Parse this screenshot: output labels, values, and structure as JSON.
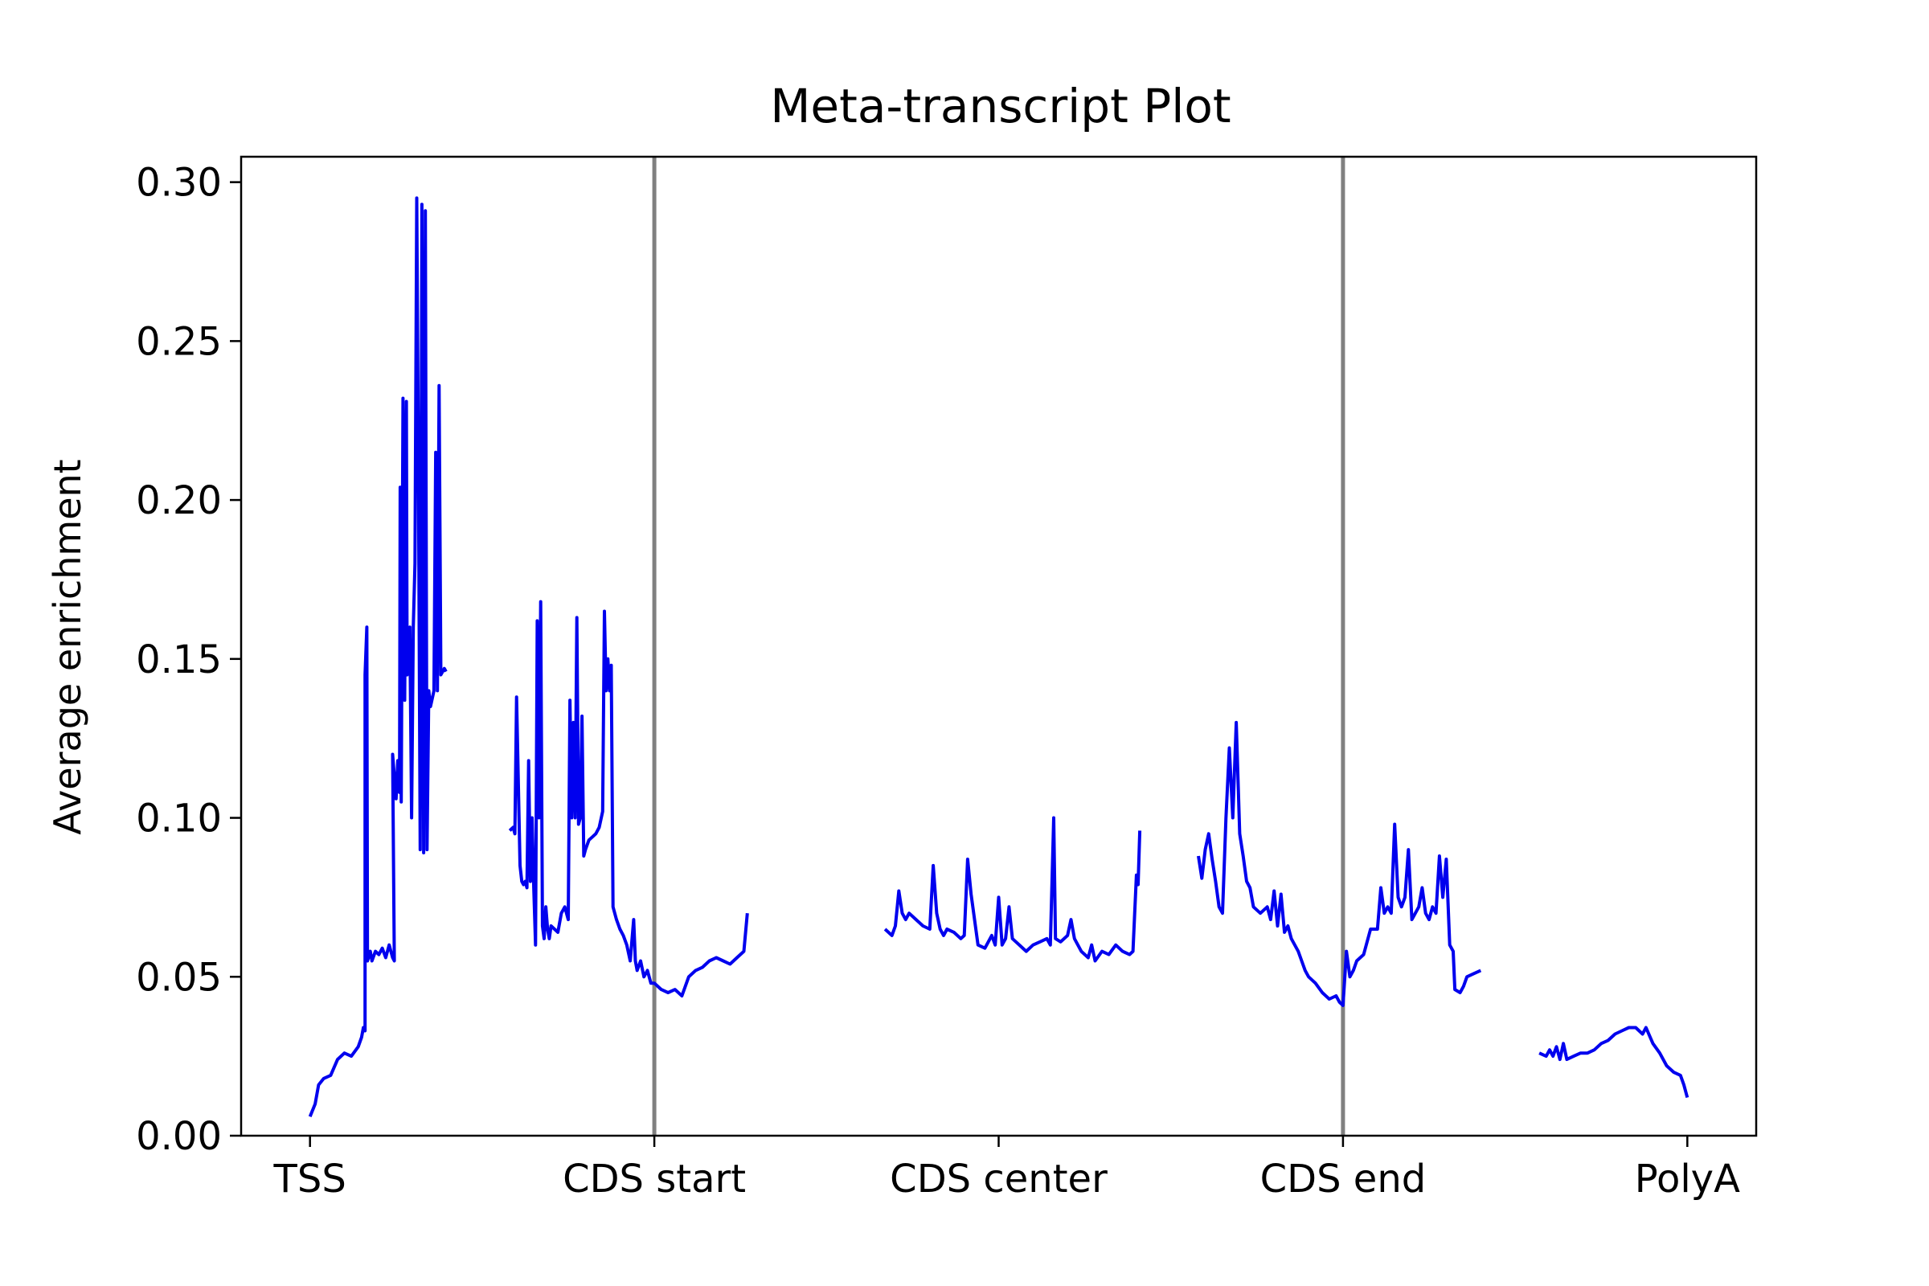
{
  "chart_data": {
    "type": "line",
    "title": "Meta-transcript Plot",
    "xlabel": "",
    "ylabel": "Average enrichment",
    "xlim": [
      -0.2,
      4.2
    ],
    "ylim": [
      0,
      0.308
    ],
    "x_ticks": [
      {
        "x": 0,
        "label": "TSS"
      },
      {
        "x": 1,
        "label": "CDS start"
      },
      {
        "x": 2,
        "label": "CDS center"
      },
      {
        "x": 3,
        "label": "CDS end"
      },
      {
        "x": 4,
        "label": "PolyA"
      }
    ],
    "y_ticks": [
      {
        "y": 0.0,
        "label": "0.00"
      },
      {
        "y": 0.05,
        "label": "0.05"
      },
      {
        "y": 0.1,
        "label": "0.10"
      },
      {
        "y": 0.15,
        "label": "0.15"
      },
      {
        "y": 0.2,
        "label": "0.20"
      },
      {
        "y": 0.25,
        "label": "0.25"
      },
      {
        "y": 0.3,
        "label": "0.30"
      }
    ],
    "vlines": [
      1,
      3
    ],
    "grid": false,
    "legend": "none",
    "colors": {
      "series": "#0000ee",
      "vline": "#808080",
      "axis": "#000000"
    },
    "segments": [
      [
        [
          0.0,
          0.006
        ],
        [
          0.015,
          0.01
        ],
        [
          0.025,
          0.016
        ],
        [
          0.04,
          0.018
        ],
        [
          0.06,
          0.019
        ],
        [
          0.08,
          0.024
        ],
        [
          0.1,
          0.026
        ],
        [
          0.12,
          0.025
        ],
        [
          0.14,
          0.028
        ],
        [
          0.15,
          0.031
        ],
        [
          0.155,
          0.034
        ],
        [
          0.16,
          0.033
        ],
        [
          0.16,
          0.145
        ],
        [
          0.165,
          0.16
        ],
        [
          0.167,
          0.055
        ],
        [
          0.175,
          0.058
        ],
        [
          0.18,
          0.055
        ],
        [
          0.19,
          0.058
        ],
        [
          0.2,
          0.057
        ],
        [
          0.21,
          0.059
        ],
        [
          0.22,
          0.056
        ],
        [
          0.23,
          0.06
        ],
        [
          0.24,
          0.056
        ],
        [
          0.245,
          0.055
        ],
        [
          0.24,
          0.12
        ],
        [
          0.25,
          0.106
        ],
        [
          0.255,
          0.118
        ],
        [
          0.26,
          0.108
        ],
        [
          0.262,
          0.204
        ],
        [
          0.265,
          0.105
        ],
        [
          0.27,
          0.232
        ],
        [
          0.275,
          0.137
        ],
        [
          0.28,
          0.231
        ],
        [
          0.282,
          0.145
        ],
        [
          0.29,
          0.16
        ],
        [
          0.295,
          0.1
        ],
        [
          0.3,
          0.16
        ],
        [
          0.305,
          0.18
        ],
        [
          0.31,
          0.295
        ],
        [
          0.315,
          0.21
        ],
        [
          0.32,
          0.09
        ],
        [
          0.325,
          0.293
        ],
        [
          0.33,
          0.089
        ],
        [
          0.335,
          0.291
        ],
        [
          0.34,
          0.09
        ],
        [
          0.345,
          0.14
        ],
        [
          0.35,
          0.135
        ],
        [
          0.36,
          0.14
        ],
        [
          0.365,
          0.215
        ],
        [
          0.37,
          0.14
        ],
        [
          0.375,
          0.236
        ],
        [
          0.38,
          0.145
        ],
        [
          0.39,
          0.147
        ],
        [
          0.395,
          0.146
        ]
      ],
      [
        [
          0.58,
          0.096
        ],
        [
          0.59,
          0.097
        ],
        [
          0.595,
          0.095
        ],
        [
          0.6,
          0.138
        ],
        [
          0.61,
          0.085
        ],
        [
          0.615,
          0.08
        ],
        [
          0.62,
          0.079
        ],
        [
          0.625,
          0.08
        ],
        [
          0.63,
          0.078
        ],
        [
          0.635,
          0.118
        ],
        [
          0.64,
          0.08
        ],
        [
          0.645,
          0.1
        ],
        [
          0.65,
          0.078
        ],
        [
          0.655,
          0.06
        ],
        [
          0.66,
          0.162
        ],
        [
          0.665,
          0.1
        ],
        [
          0.67,
          0.168
        ],
        [
          0.675,
          0.066
        ],
        [
          0.68,
          0.062
        ],
        [
          0.685,
          0.072
        ],
        [
          0.69,
          0.065
        ],
        [
          0.695,
          0.062
        ],
        [
          0.7,
          0.066
        ],
        [
          0.72,
          0.064
        ],
        [
          0.73,
          0.07
        ],
        [
          0.74,
          0.072
        ],
        [
          0.75,
          0.068
        ],
        [
          0.755,
          0.137
        ],
        [
          0.76,
          0.1
        ],
        [
          0.765,
          0.13
        ],
        [
          0.77,
          0.1
        ],
        [
          0.775,
          0.163
        ],
        [
          0.78,
          0.098
        ],
        [
          0.785,
          0.1
        ],
        [
          0.79,
          0.132
        ],
        [
          0.795,
          0.088
        ],
        [
          0.8,
          0.09
        ],
        [
          0.81,
          0.093
        ],
        [
          0.82,
          0.094
        ],
        [
          0.83,
          0.095
        ],
        [
          0.84,
          0.097
        ],
        [
          0.85,
          0.102
        ],
        [
          0.855,
          0.165
        ],
        [
          0.86,
          0.14
        ],
        [
          0.865,
          0.15
        ],
        [
          0.87,
          0.14
        ],
        [
          0.875,
          0.148
        ],
        [
          0.88,
          0.072
        ],
        [
          0.89,
          0.068
        ],
        [
          0.9,
          0.065
        ],
        [
          0.91,
          0.063
        ],
        [
          0.92,
          0.06
        ],
        [
          0.93,
          0.055
        ],
        [
          0.94,
          0.068
        ],
        [
          0.945,
          0.055
        ],
        [
          0.95,
          0.052
        ],
        [
          0.96,
          0.055
        ],
        [
          0.97,
          0.05
        ],
        [
          0.98,
          0.052
        ],
        [
          0.99,
          0.048
        ],
        [
          1.0,
          0.048
        ],
        [
          1.02,
          0.046
        ],
        [
          1.04,
          0.045
        ],
        [
          1.06,
          0.046
        ],
        [
          1.08,
          0.044
        ],
        [
          1.1,
          0.05
        ],
        [
          1.12,
          0.052
        ],
        [
          1.14,
          0.053
        ],
        [
          1.16,
          0.055
        ],
        [
          1.18,
          0.056
        ],
        [
          1.2,
          0.055
        ],
        [
          1.22,
          0.054
        ],
        [
          1.24,
          0.056
        ],
        [
          1.26,
          0.058
        ],
        [
          1.27,
          0.07
        ]
      ],
      [
        [
          1.67,
          0.065
        ],
        [
          1.69,
          0.063
        ],
        [
          1.7,
          0.066
        ],
        [
          1.71,
          0.077
        ],
        [
          1.72,
          0.07
        ],
        [
          1.73,
          0.068
        ],
        [
          1.74,
          0.07
        ],
        [
          1.76,
          0.068
        ],
        [
          1.78,
          0.066
        ],
        [
          1.8,
          0.065
        ],
        [
          1.81,
          0.085
        ],
        [
          1.82,
          0.07
        ],
        [
          1.83,
          0.065
        ],
        [
          1.84,
          0.063
        ],
        [
          1.85,
          0.065
        ],
        [
          1.87,
          0.064
        ],
        [
          1.89,
          0.062
        ],
        [
          1.9,
          0.063
        ],
        [
          1.91,
          0.087
        ],
        [
          1.92,
          0.076
        ],
        [
          1.93,
          0.068
        ],
        [
          1.94,
          0.06
        ],
        [
          1.96,
          0.059
        ],
        [
          1.98,
          0.063
        ],
        [
          1.99,
          0.06
        ],
        [
          2.0,
          0.075
        ],
        [
          2.01,
          0.06
        ],
        [
          2.02,
          0.062
        ],
        [
          2.03,
          0.072
        ],
        [
          2.04,
          0.062
        ],
        [
          2.06,
          0.06
        ],
        [
          2.08,
          0.058
        ],
        [
          2.1,
          0.06
        ],
        [
          2.12,
          0.061
        ],
        [
          2.14,
          0.062
        ],
        [
          2.15,
          0.06
        ],
        [
          2.16,
          0.1
        ],
        [
          2.165,
          0.062
        ],
        [
          2.18,
          0.061
        ],
        [
          2.2,
          0.063
        ],
        [
          2.21,
          0.068
        ],
        [
          2.22,
          0.062
        ],
        [
          2.24,
          0.058
        ],
        [
          2.26,
          0.056
        ],
        [
          2.27,
          0.06
        ],
        [
          2.28,
          0.055
        ],
        [
          2.3,
          0.058
        ],
        [
          2.32,
          0.057
        ],
        [
          2.34,
          0.06
        ],
        [
          2.36,
          0.058
        ],
        [
          2.38,
          0.057
        ],
        [
          2.39,
          0.058
        ],
        [
          2.4,
          0.082
        ],
        [
          2.405,
          0.079
        ],
        [
          2.41,
          0.096
        ]
      ],
      [
        [
          2.58,
          0.088
        ],
        [
          2.59,
          0.081
        ],
        [
          2.6,
          0.09
        ],
        [
          2.61,
          0.095
        ],
        [
          2.62,
          0.087
        ],
        [
          2.63,
          0.08
        ],
        [
          2.64,
          0.072
        ],
        [
          2.65,
          0.07
        ],
        [
          2.66,
          0.1
        ],
        [
          2.67,
          0.122
        ],
        [
          2.68,
          0.1
        ],
        [
          2.69,
          0.13
        ],
        [
          2.7,
          0.095
        ],
        [
          2.71,
          0.088
        ],
        [
          2.72,
          0.08
        ],
        [
          2.73,
          0.078
        ],
        [
          2.74,
          0.072
        ],
        [
          2.76,
          0.07
        ],
        [
          2.78,
          0.072
        ],
        [
          2.79,
          0.068
        ],
        [
          2.8,
          0.077
        ],
        [
          2.81,
          0.066
        ],
        [
          2.82,
          0.076
        ],
        [
          2.83,
          0.064
        ],
        [
          2.84,
          0.066
        ],
        [
          2.85,
          0.062
        ],
        [
          2.86,
          0.06
        ],
        [
          2.87,
          0.058
        ],
        [
          2.88,
          0.055
        ],
        [
          2.89,
          0.052
        ],
        [
          2.9,
          0.05
        ],
        [
          2.92,
          0.048
        ],
        [
          2.94,
          0.045
        ],
        [
          2.96,
          0.043
        ],
        [
          2.98,
          0.044
        ],
        [
          2.99,
          0.042
        ],
        [
          3.0,
          0.041
        ],
        [
          3.01,
          0.058
        ],
        [
          3.02,
          0.05
        ],
        [
          3.03,
          0.052
        ],
        [
          3.04,
          0.055
        ],
        [
          3.06,
          0.057
        ],
        [
          3.08,
          0.065
        ],
        [
          3.1,
          0.065
        ],
        [
          3.11,
          0.078
        ],
        [
          3.12,
          0.07
        ],
        [
          3.13,
          0.072
        ],
        [
          3.14,
          0.07
        ],
        [
          3.15,
          0.098
        ],
        [
          3.16,
          0.075
        ],
        [
          3.17,
          0.072
        ],
        [
          3.18,
          0.075
        ],
        [
          3.19,
          0.09
        ],
        [
          3.2,
          0.068
        ],
        [
          3.22,
          0.072
        ],
        [
          3.23,
          0.078
        ],
        [
          3.24,
          0.07
        ],
        [
          3.25,
          0.068
        ],
        [
          3.26,
          0.072
        ],
        [
          3.27,
          0.07
        ],
        [
          3.28,
          0.088
        ],
        [
          3.29,
          0.075
        ],
        [
          3.3,
          0.087
        ],
        [
          3.31,
          0.06
        ],
        [
          3.32,
          0.058
        ],
        [
          3.325,
          0.046
        ],
        [
          3.34,
          0.045
        ],
        [
          3.35,
          0.047
        ],
        [
          3.36,
          0.05
        ],
        [
          3.38,
          0.051
        ],
        [
          3.4,
          0.052
        ]
      ],
      [
        [
          3.57,
          0.026
        ],
        [
          3.59,
          0.025
        ],
        [
          3.6,
          0.027
        ],
        [
          3.61,
          0.025
        ],
        [
          3.62,
          0.028
        ],
        [
          3.63,
          0.024
        ],
        [
          3.64,
          0.029
        ],
        [
          3.65,
          0.024
        ],
        [
          3.67,
          0.025
        ],
        [
          3.69,
          0.026
        ],
        [
          3.71,
          0.026
        ],
        [
          3.73,
          0.027
        ],
        [
          3.75,
          0.029
        ],
        [
          3.77,
          0.03
        ],
        [
          3.79,
          0.032
        ],
        [
          3.81,
          0.033
        ],
        [
          3.83,
          0.034
        ],
        [
          3.85,
          0.034
        ],
        [
          3.87,
          0.032
        ],
        [
          3.88,
          0.034
        ],
        [
          3.9,
          0.029
        ],
        [
          3.92,
          0.026
        ],
        [
          3.94,
          0.022
        ],
        [
          3.96,
          0.02
        ],
        [
          3.98,
          0.019
        ],
        [
          3.99,
          0.016
        ],
        [
          4.0,
          0.012
        ]
      ]
    ]
  }
}
